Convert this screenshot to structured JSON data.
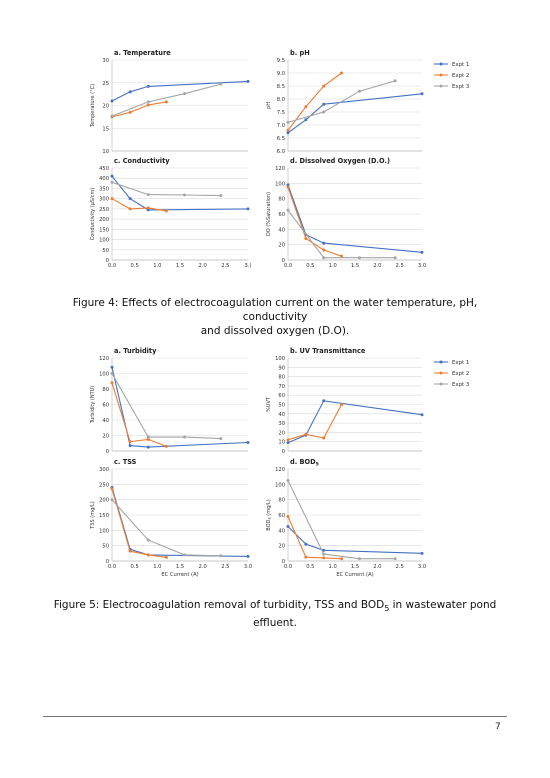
{
  "colors": {
    "expt1": "#4472c4",
    "expt2": "#ed7d31",
    "expt3": "#a5a5a5",
    "grid": "#d9d9d9",
    "axis": "#bfbfbf"
  },
  "legend": [
    "Expt 1",
    "Expt 2",
    "Expt 3"
  ],
  "figure4": {
    "caption_line1": "Figure 4: Effects of electrocoagulation current on the water temperature, pH, conductivity",
    "caption_line2": "and dissolved oxygen (D.O)."
  },
  "figure5": {
    "caption_line1": "Figure 5: Electrocoagulation removal of turbidity, TSS and BOD",
    "caption_sub": "5",
    "caption_line1_end": " in wastewater pond",
    "caption_line2": "effluent."
  },
  "page_number": "7",
  "chart_data": [
    {
      "type": "line",
      "title": "a. Temperature",
      "xlabel": "",
      "ylabel": "Temperature (°C)",
      "xlim": [
        0,
        3
      ],
      "ylim": [
        10,
        30
      ],
      "xticks": [
        0,
        0.5,
        1,
        1.5,
        2,
        2.5,
        3
      ],
      "xtick_labels": [],
      "yticks": [
        10,
        15,
        20,
        25,
        30
      ],
      "ytick_labels": [
        "10",
        "15",
        "20",
        "25",
        "30"
      ],
      "series": [
        {
          "name": "Expt 1",
          "x": [
            0,
            0.4,
            0.8,
            3.0
          ],
          "y": [
            21.0,
            23.0,
            24.2,
            25.3
          ]
        },
        {
          "name": "Expt 2",
          "x": [
            0,
            0.4,
            0.8,
            1.2
          ],
          "y": [
            17.5,
            18.5,
            20.1,
            20.8
          ]
        },
        {
          "name": "Expt 3",
          "x": [
            0,
            0.8,
            1.6,
            2.4
          ],
          "y": [
            17.7,
            20.8,
            22.6,
            24.7
          ]
        }
      ]
    },
    {
      "type": "line",
      "title": "b. pH",
      "xlabel": "",
      "ylabel": "pH",
      "xlim": [
        0,
        3
      ],
      "ylim": [
        6.0,
        9.5
      ],
      "xticks": [
        0,
        0.5,
        1,
        1.5,
        2,
        2.5,
        3
      ],
      "xtick_labels": [],
      "yticks": [
        6.0,
        6.5,
        7.0,
        7.5,
        8.0,
        8.5,
        9.0,
        9.5
      ],
      "ytick_labels": [
        "6.0",
        "6.5",
        "7.0",
        "7.5",
        "8.0",
        "8.5",
        "9.0",
        "9.5"
      ],
      "legend": "right",
      "series": [
        {
          "name": "Expt 1",
          "x": [
            0,
            0.4,
            0.8,
            3.0
          ],
          "y": [
            6.7,
            7.2,
            7.8,
            8.2
          ]
        },
        {
          "name": "Expt 2",
          "x": [
            0,
            0.4,
            0.8,
            1.2
          ],
          "y": [
            6.8,
            7.7,
            8.5,
            9.0
          ]
        },
        {
          "name": "Expt 3",
          "x": [
            0,
            0.8,
            1.6,
            2.4
          ],
          "y": [
            7.1,
            7.5,
            8.3,
            8.7
          ]
        }
      ]
    },
    {
      "type": "line",
      "title": "c. Conductivity",
      "xlabel": "",
      "ylabel": "Conductivity (µS/cm)",
      "xlim": [
        0,
        3
      ],
      "ylim": [
        0,
        450
      ],
      "xticks": [
        0,
        0.5,
        1,
        1.5,
        2,
        2.5,
        3
      ],
      "xtick_labels": [
        "0.0",
        "0.5",
        "1.0",
        "1.5",
        "2.0",
        "2.5",
        "3.("
      ],
      "yticks": [
        0,
        50,
        100,
        150,
        200,
        250,
        300,
        350,
        400,
        450
      ],
      "ytick_labels": [
        "0",
        "50",
        "100",
        "150",
        "200",
        "250",
        "300",
        "350",
        "400",
        "450"
      ],
      "series": [
        {
          "name": "Expt 1",
          "x": [
            0,
            0.4,
            0.8,
            3.0
          ],
          "y": [
            410,
            300,
            245,
            250
          ]
        },
        {
          "name": "Expt 2",
          "x": [
            0,
            0.4,
            0.8,
            1.2
          ],
          "y": [
            300,
            250,
            255,
            240
          ]
        },
        {
          "name": "Expt 3",
          "x": [
            0,
            0.8,
            1.6,
            2.4
          ],
          "y": [
            380,
            320,
            318,
            315
          ]
        }
      ]
    },
    {
      "type": "line",
      "title": "d. Dissolved Oxygen (D.O.)",
      "xlabel": "",
      "ylabel": "DO (%Saturation)",
      "xlim": [
        0,
        3
      ],
      "ylim": [
        0,
        120
      ],
      "xticks": [
        0,
        0.5,
        1,
        1.5,
        2,
        2.5,
        3
      ],
      "xtick_labels": [
        "0.0",
        "0.5",
        "1.0",
        "1.5",
        "2.0",
        "2.5",
        "3.0"
      ],
      "yticks": [
        0,
        20,
        40,
        60,
        80,
        100,
        120
      ],
      "ytick_labels": [
        "0",
        "20",
        "40",
        "60",
        "80",
        "100",
        "120"
      ],
      "series": [
        {
          "name": "Expt 1",
          "x": [
            0,
            0.4,
            0.8,
            3.0
          ],
          "y": [
            98,
            33,
            22,
            10
          ]
        },
        {
          "name": "Expt 2",
          "x": [
            0,
            0.4,
            0.8,
            1.2
          ],
          "y": [
            95,
            28,
            13,
            5
          ]
        },
        {
          "name": "Expt 3",
          "x": [
            0,
            0.8,
            1.6,
            2.4
          ],
          "y": [
            65,
            3,
            3,
            3
          ]
        }
      ]
    },
    {
      "type": "line",
      "title": "a. Turbidity",
      "xlabel": "",
      "ylabel": "Turbidity (NTU)",
      "xlim": [
        0,
        3
      ],
      "ylim": [
        0,
        120
      ],
      "xticks": [
        0,
        0.5,
        1,
        1.5,
        2,
        2.5,
        3
      ],
      "xtick_labels": [],
      "yticks": [
        0,
        20,
        40,
        60,
        80,
        100,
        120
      ],
      "ytick_labels": [
        "0",
        "20",
        "40",
        "60",
        "80",
        "100",
        "120"
      ],
      "series": [
        {
          "name": "Expt 1",
          "x": [
            0,
            0.4,
            0.8,
            3.0
          ],
          "y": [
            108,
            7,
            5,
            11
          ]
        },
        {
          "name": "Expt 2",
          "x": [
            0,
            0.4,
            0.8,
            1.2
          ],
          "y": [
            88,
            12,
            15,
            6
          ]
        },
        {
          "name": "Expt 3",
          "x": [
            0,
            0.8,
            1.6,
            2.4
          ],
          "y": [
            100,
            18,
            18,
            16
          ]
        }
      ]
    },
    {
      "type": "line",
      "title": "b. UV Transmittance",
      "xlabel": "",
      "ylabel": "%UVT",
      "xlim": [
        0,
        3
      ],
      "ylim": [
        0,
        100
      ],
      "xticks": [
        0,
        0.5,
        1,
        1.5,
        2,
        2.5,
        3
      ],
      "xtick_labels": [],
      "yticks": [
        0,
        10,
        20,
        30,
        40,
        50,
        60,
        70,
        80,
        90,
        100
      ],
      "ytick_labels": [
        "0",
        "10",
        "20",
        "30",
        "40",
        "50",
        "60",
        "70",
        "80",
        "90",
        "100"
      ],
      "legend": "right",
      "series": [
        {
          "name": "Expt 1",
          "x": [
            0,
            0.4,
            0.8,
            3.0
          ],
          "y": [
            9,
            17,
            54,
            39
          ]
        },
        {
          "name": "Expt 2",
          "x": [
            0,
            0.4,
            0.8,
            1.2
          ],
          "y": [
            12,
            18,
            14,
            50
          ]
        },
        {
          "name": "Expt 3",
          "x": [],
          "y": []
        }
      ]
    },
    {
      "type": "line",
      "title": "c. TSS",
      "xlabel": "EC Current (A)",
      "ylabel": "TSS (mg/L)",
      "xlim": [
        0,
        3
      ],
      "ylim": [
        0,
        300
      ],
      "xticks": [
        0,
        0.5,
        1,
        1.5,
        2,
        2.5,
        3
      ],
      "xtick_labels": [
        "0.0",
        "0.5",
        "1.0",
        "1.5",
        "2.0",
        "2.5",
        "3.0"
      ],
      "yticks": [
        0,
        50,
        100,
        150,
        200,
        250,
        300
      ],
      "ytick_labels": [
        "0",
        "50",
        "100",
        "150",
        "200",
        "250",
        "300"
      ],
      "series": [
        {
          "name": "Expt 1",
          "x": [
            0,
            0.4,
            0.8,
            3.0
          ],
          "y": [
            240,
            38,
            20,
            15
          ]
        },
        {
          "name": "Expt 2",
          "x": [
            0,
            0.4,
            0.8,
            1.2
          ],
          "y": [
            235,
            32,
            20,
            12
          ]
        },
        {
          "name": "Expt 3",
          "x": [
            0,
            0.8,
            1.6,
            2.4
          ],
          "y": [
            200,
            68,
            20,
            17
          ]
        }
      ]
    },
    {
      "type": "line",
      "title": "d. BOD",
      "title_sub": "5",
      "xlabel": "EC Current (A)",
      "ylabel": "BOD",
      "ylabel_sub": "5",
      "ylabel_end": " (mg/L)",
      "xlim": [
        0,
        3
      ],
      "ylim": [
        0,
        120
      ],
      "xticks": [
        0,
        0.5,
        1,
        1.5,
        2,
        2.5,
        3
      ],
      "xtick_labels": [
        "0.0",
        "0.5",
        "1.0",
        "1.5",
        "2.0",
        "2.5",
        "3.0"
      ],
      "yticks": [
        0,
        20,
        40,
        60,
        80,
        100,
        120
      ],
      "ytick_labels": [
        "0",
        "20",
        "40",
        "60",
        "80",
        "100",
        "120"
      ],
      "series": [
        {
          "name": "Expt 1",
          "x": [
            0,
            0.4,
            0.8,
            3.0
          ],
          "y": [
            45,
            22,
            14,
            10
          ]
        },
        {
          "name": "Expt 2",
          "x": [
            0,
            0.4,
            0.8,
            1.2
          ],
          "y": [
            58,
            5,
            4,
            3
          ]
        },
        {
          "name": "Expt 3",
          "x": [
            0,
            0.8,
            1.6,
            2.4
          ],
          "y": [
            105,
            9,
            3,
            3
          ]
        }
      ]
    }
  ]
}
